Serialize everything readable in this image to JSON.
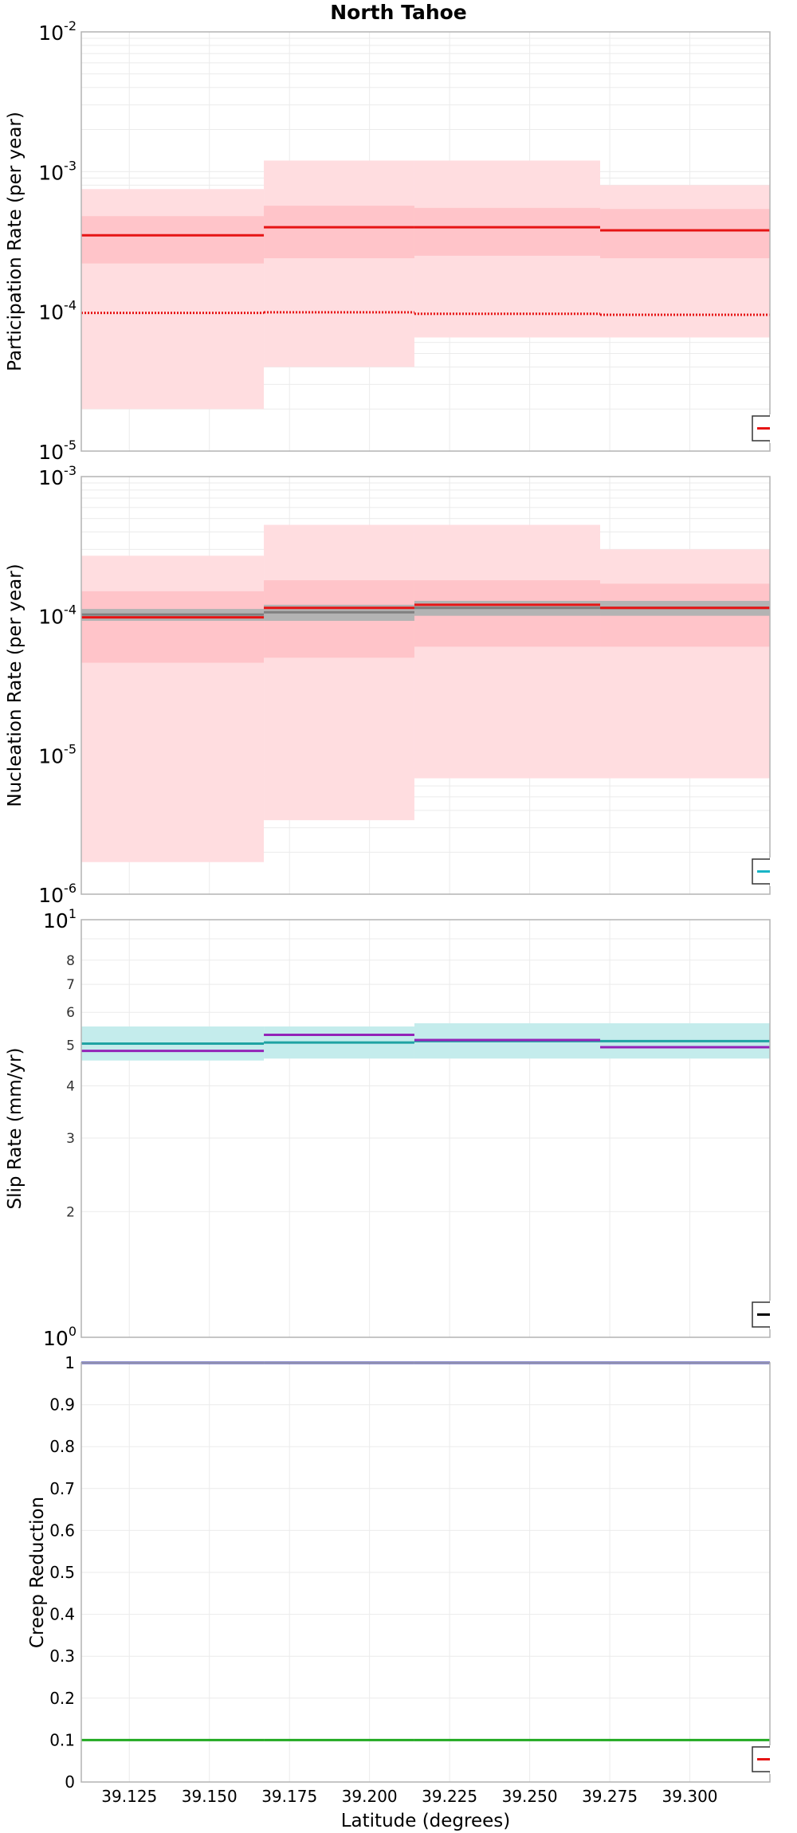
{
  "title": "North Tahoe",
  "x_axis": {
    "label": "Latitude (degrees)",
    "range": [
      39.11,
      39.325
    ],
    "ticks": [
      "39.125",
      "39.150",
      "39.175",
      "39.200",
      "39.225",
      "39.250",
      "39.275",
      "39.300"
    ],
    "tick_values": [
      39.125,
      39.15,
      39.175,
      39.2,
      39.225,
      39.25,
      39.275,
      39.3
    ]
  },
  "segment_bounds": [
    39.11,
    39.167,
    39.214,
    39.272,
    39.325
  ],
  "chart_data": [
    {
      "type": "line",
      "id": "participation",
      "ylabel": "Participation Rate (per year)",
      "scale": "log",
      "ylim": [
        1e-05,
        0.01
      ],
      "major_ticks": [
        {
          "base": "10",
          "exp": "-5",
          "value": 1e-05
        },
        {
          "base": "10",
          "exp": "-4",
          "value": 0.0001
        },
        {
          "base": "10",
          "exp": "-3",
          "value": 0.001
        },
        {
          "base": "10",
          "exp": "-2",
          "value": 0.01
        }
      ],
      "series": [
        {
          "style": "band-outer",
          "color": "#ffdde0",
          "lower": [
            2e-05,
            4e-05,
            6.5e-05,
            6.5e-05
          ],
          "upper": [
            0.00075,
            0.0012,
            0.0012,
            0.0008
          ]
        },
        {
          "style": "band-inner",
          "color": "#ffc4c9",
          "lower": [
            0.00022,
            0.00024,
            0.00025,
            0.00024
          ],
          "upper": [
            0.00048,
            0.00057,
            0.00055,
            0.00054
          ]
        },
        {
          "style": "solid",
          "color": "#e61414",
          "values": [
            0.00035,
            0.0004,
            0.0004,
            0.00038
          ]
        },
        {
          "style": "dotted",
          "color": "#e61414",
          "values": [
            9.75e-05,
            9.85e-05,
            9.6e-05,
            9.45e-05
          ]
        }
      ],
      "legend": {
        "placement": "bottom-right",
        "color": "#e61414"
      }
    },
    {
      "type": "line",
      "id": "nucleation",
      "ylabel": "Nucleation Rate (per year)",
      "scale": "log",
      "ylim": [
        1e-06,
        0.001
      ],
      "major_ticks": [
        {
          "base": "10",
          "exp": "-6",
          "value": 1e-06
        },
        {
          "base": "10",
          "exp": "-5",
          "value": 1e-05
        },
        {
          "base": "10",
          "exp": "-4",
          "value": 0.0001
        },
        {
          "base": "10",
          "exp": "-3",
          "value": 0.001
        }
      ],
      "series": [
        {
          "style": "band-outer",
          "color": "#ffdde0",
          "lower": [
            1.7e-06,
            3.4e-06,
            6.8e-06,
            6.8e-06
          ],
          "upper": [
            0.00027,
            0.00045,
            0.00045,
            0.0003
          ]
        },
        {
          "style": "band-inner",
          "color": "#ffc4c9",
          "lower": [
            4.6e-05,
            5e-05,
            6e-05,
            6e-05
          ],
          "upper": [
            0.00015,
            0.00018,
            0.00018,
            0.00017
          ]
        },
        {
          "style": "band-gray",
          "color": "#b3b3b3",
          "lower": [
            9.2e-05,
            9.2e-05,
            0.0001,
            0.0001
          ],
          "upper": [
            0.000112,
            0.00012,
            0.000128,
            0.000128
          ]
        },
        {
          "style": "solid",
          "color": "#7f7f7f",
          "values": [
            0.000102,
            0.000106,
            0.000114,
            0.000114
          ]
        },
        {
          "style": "solid",
          "color": "#e61414",
          "values": [
            9.75e-05,
            0.000114,
            0.00012,
            0.000114
          ]
        }
      ],
      "legend": {
        "placement": "bottom-right",
        "color": "#18b5c6"
      }
    },
    {
      "type": "line",
      "id": "slip",
      "ylabel": "Slip Rate (mm/yr)",
      "scale": "log",
      "ylim": [
        1,
        10
      ],
      "major_ticks": [
        {
          "base": "10",
          "exp": "0",
          "value": 1
        },
        {
          "base": "10",
          "exp": "1",
          "value": 10
        }
      ],
      "minor_ticks": [
        {
          "label": "2",
          "value": 2
        },
        {
          "label": "3",
          "value": 3
        },
        {
          "label": "4",
          "value": 4
        },
        {
          "label": "5",
          "value": 5
        },
        {
          "label": "6",
          "value": 6
        },
        {
          "label": "7",
          "value": 7
        },
        {
          "label": "8",
          "value": 8
        }
      ],
      "series": [
        {
          "style": "band-outer",
          "color": "#c4ecec",
          "lower": [
            4.6,
            4.65,
            4.65,
            4.65
          ],
          "upper": [
            5.55,
            5.55,
            5.65,
            5.65
          ]
        },
        {
          "style": "solid",
          "color": "#1fa3a3",
          "values": [
            5.05,
            5.08,
            5.12,
            5.12
          ]
        },
        {
          "style": "solid",
          "color": "#9324b8",
          "values": [
            4.85,
            5.3,
            5.15,
            4.95
          ]
        }
      ],
      "legend": {
        "placement": "bottom-right",
        "color": "#000000"
      }
    },
    {
      "type": "line",
      "id": "creep",
      "ylabel": "Creep Reduction",
      "scale": "linear",
      "ylim": [
        0,
        1
      ],
      "ticks": [
        "0",
        "0.1",
        "0.2",
        "0.3",
        "0.4",
        "0.5",
        "0.6",
        "0.7",
        "0.8",
        "0.9",
        "1"
      ],
      "tick_values": [
        0,
        0.1,
        0.2,
        0.3,
        0.4,
        0.5,
        0.6,
        0.7,
        0.8,
        0.9,
        1
      ],
      "series": [
        {
          "style": "solid",
          "color": "#2828a0",
          "values": [
            1,
            1,
            1,
            1
          ]
        },
        {
          "style": "solid",
          "color": "#22aa22",
          "values": [
            0.1,
            0.1,
            0.1,
            0.1
          ]
        }
      ],
      "legend": {
        "placement": "bottom-right",
        "color": "#e61414"
      }
    }
  ]
}
